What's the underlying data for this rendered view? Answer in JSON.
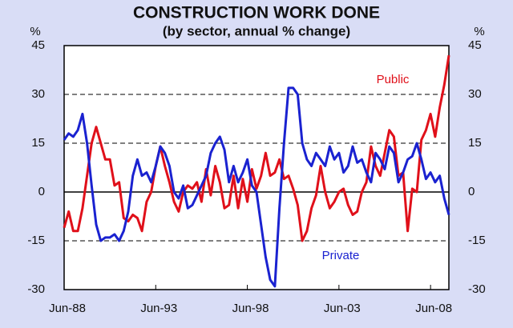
{
  "chart_data": {
    "type": "line",
    "title": "CONSTRUCTION WORK DONE",
    "subtitle": "(by sector, annual % change)",
    "y_unit": "%",
    "y2_unit": "%",
    "categories": [
      "Jun-88",
      null,
      null,
      null,
      null,
      null,
      null,
      null,
      null,
      null,
      null,
      null,
      null,
      null,
      null,
      null,
      null,
      null,
      null,
      null,
      "Jun-93",
      null,
      null,
      null,
      null,
      null,
      null,
      null,
      null,
      null,
      null,
      null,
      null,
      null,
      null,
      null,
      null,
      null,
      null,
      null,
      "Jun-98",
      null,
      null,
      null,
      null,
      null,
      null,
      null,
      null,
      null,
      null,
      null,
      null,
      null,
      null,
      null,
      null,
      null,
      null,
      null,
      "Jun-03",
      null,
      null,
      null,
      null,
      null,
      null,
      null,
      null,
      null,
      null,
      null,
      null,
      null,
      null,
      null,
      null,
      null,
      null,
      null,
      "Jun-08",
      null,
      null,
      null,
      null
    ],
    "series": [
      {
        "name": "Public",
        "color": "#e0101a",
        "values": [
          -11,
          -6,
          -12,
          -12,
          -5,
          5,
          15,
          20,
          15,
          10,
          10,
          2,
          3,
          -8,
          -9,
          -7,
          -8,
          -12,
          -3,
          0,
          8,
          14,
          8,
          3,
          -3,
          -6,
          0,
          2,
          1,
          3,
          -3,
          7,
          -1,
          8,
          3,
          -5,
          -4,
          5,
          -5,
          4,
          -3,
          7,
          1,
          5,
          12,
          5,
          6,
          10,
          4,
          5,
          1,
          -4,
          -15,
          -12,
          -5,
          -1,
          8,
          0,
          -5,
          -3,
          0,
          1,
          -4,
          -7,
          -6,
          0,
          3,
          14,
          8,
          5,
          12,
          19,
          17,
          5,
          6,
          -12,
          1,
          0,
          16,
          19,
          24,
          17,
          26,
          33,
          42
        ]
      },
      {
        "name": "Private",
        "color": "#1a22d0",
        "values": [
          16,
          18,
          17,
          19,
          24,
          15,
          2,
          -10,
          -15,
          -14,
          -14,
          -13,
          -15,
          -12,
          -6,
          5,
          10,
          5,
          6,
          3,
          8,
          14,
          12,
          8,
          0,
          -2,
          2,
          -5,
          -4,
          -1,
          2,
          5,
          12,
          15,
          17,
          13,
          3,
          8,
          3,
          6,
          10,
          2,
          0,
          -10,
          -20,
          -27,
          -29,
          -5,
          15,
          32,
          32,
          30,
          15,
          10,
          8,
          12,
          10,
          8,
          14,
          10,
          12,
          6,
          8,
          14,
          9,
          10,
          6,
          3,
          12,
          10,
          7,
          14,
          12,
          3,
          6,
          10,
          11,
          15,
          10,
          4,
          6,
          3,
          5,
          -2,
          -7
        ]
      }
    ],
    "ylim": [
      -30,
      45
    ],
    "yticks": [
      -30,
      -15,
      0,
      15,
      30,
      45
    ],
    "y2lim": [
      -30,
      45
    ],
    "y2ticks": [
      -30,
      -15,
      0,
      15,
      30,
      45
    ],
    "grid": true
  }
}
